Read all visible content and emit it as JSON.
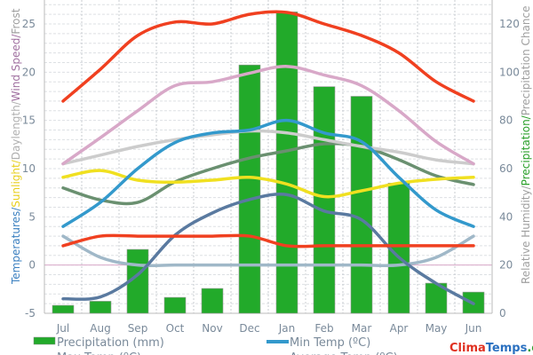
{
  "chart_data": {
    "type": "bar+line",
    "categories": [
      "Jul",
      "Aug",
      "Sep",
      "Oct",
      "Nov",
      "Dec",
      "Jan",
      "Feb",
      "Mar",
      "Apr",
      "May",
      "Jun"
    ],
    "left_axis": {
      "label_parts": [
        {
          "text": "Temperatures/",
          "color": "#3a7fc0"
        },
        {
          "text": "Sunlight/",
          "color": "#e8d020"
        },
        {
          "text": "Daylength/",
          "color": "#b0b0b0"
        },
        {
          "text": "Wind Speed/",
          "color": "#a070a0"
        },
        {
          "text": "Frost",
          "color": "#a0a0a0"
        }
      ],
      "ylim": [
        -5,
        27
      ],
      "ticks": [
        "-5",
        "0",
        "5",
        "10",
        "15",
        "20",
        "25"
      ]
    },
    "right_axis": {
      "label_parts": [
        {
          "text": "Relative Humidity/",
          "color": "#a0a0a0"
        },
        {
          "text": "Precipitation/",
          "color": "#2aa02a"
        },
        {
          "text": "Precipitation Chance",
          "color": "#a0a0a0"
        }
      ],
      "ylim": [
        0,
        128
      ],
      "ticks": [
        "0",
        "20",
        "40",
        "60",
        "80",
        "100",
        "120"
      ]
    },
    "bars": {
      "name": "Precipitation (mm)",
      "color": "#22aa2a",
      "axis": "right",
      "values": [
        3.3,
        5,
        26.5,
        6.6,
        10.3,
        103,
        125,
        94,
        90,
        54,
        12.5,
        8.8
      ]
    },
    "series": [
      {
        "name": "Max Temp (ºC)",
        "color": "#f04020",
        "axis": "left",
        "values": [
          17,
          20.3,
          23.8,
          25.2,
          25,
          26,
          26.2,
          25,
          23.8,
          22,
          19,
          17
        ]
      },
      {
        "name": "Min Temp (ºC)",
        "color": "#3399cc",
        "axis": "left",
        "values": [
          4,
          6.5,
          10,
          12.7,
          13.7,
          14,
          15,
          13.7,
          12.8,
          9.1,
          5.7,
          4
        ]
      },
      {
        "name": "Average Temp (ºC)",
        "color": "#d8a8c8",
        "axis": "left",
        "values": [
          10.5,
          13.2,
          16,
          18.6,
          19,
          19.9,
          20.6,
          19.7,
          18.6,
          16,
          12.8,
          10.5
        ]
      },
      {
        "color": "#cccccc",
        "axis": "left",
        "values": [
          10.5,
          11.4,
          12.3,
          13,
          13.5,
          13.9,
          13.7,
          13,
          12.3,
          11.7,
          10.9,
          10.5
        ]
      },
      {
        "color": "#f0e020",
        "axis": "left",
        "values": [
          9.1,
          9.8,
          8.8,
          8.6,
          8.8,
          9.1,
          8.4,
          7.1,
          7.7,
          8.5,
          8.9,
          9.1
        ]
      },
      {
        "color": "#6a9070",
        "axis": "right",
        "values": [
          52,
          47,
          46,
          54.5,
          60,
          64.4,
          67.4,
          70.3,
          69.2,
          63.7,
          57,
          53.4
        ]
      },
      {
        "color": "#f04020",
        "axis": "left",
        "values": [
          2,
          3,
          3,
          3,
          3,
          3,
          2,
          2,
          2,
          2,
          2,
          2
        ]
      },
      {
        "color": "#5a7aa0",
        "axis": "left",
        "values": [
          -3.5,
          -3.3,
          -1,
          3.1,
          5.4,
          6.8,
          7.3,
          5.6,
          4.7,
          0.8,
          -1.9,
          -4
        ]
      },
      {
        "color": "#a0b8c8",
        "axis": "left",
        "values": [
          3,
          0.8,
          0,
          0,
          0,
          0,
          0,
          0,
          0,
          0,
          0.8,
          3
        ]
      }
    ],
    "legend": [
      {
        "label": "Precipitation (mm)",
        "color": "#22aa2a",
        "kind": "bar"
      },
      {
        "label": "Min Temp (ºC)",
        "color": "#3399cc",
        "kind": "line"
      },
      {
        "label": "Max Temp (ºC)",
        "color": "#f04020",
        "kind": "line"
      },
      {
        "label": "Average Temp (ºC)",
        "color": "#d8a8c8",
        "kind": "line"
      }
    ],
    "grid": true
  },
  "watermark": {
    "parts": [
      {
        "text": "Clima",
        "color": "#e03020"
      },
      {
        "text": "Temps",
        "color": "#2a70c0"
      },
      {
        "text": ".com",
        "color": "#2aa02a"
      }
    ]
  }
}
